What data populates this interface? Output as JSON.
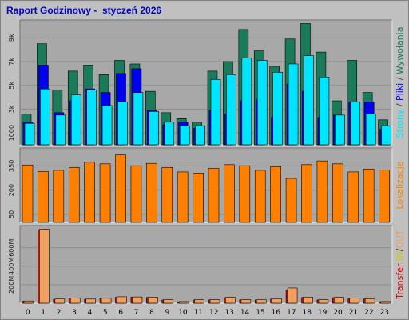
{
  "report": {
    "title": "Raport Godzinowy -  styczeń 2026"
  },
  "colors": {
    "background": "#c0c0c0",
    "plot_bg": "#a8a8a8",
    "grid": "#8c8c8c",
    "hits": "#1a7a5a",
    "files": "#0000ee",
    "pages": "#00e5ff",
    "visits": "#ff8000",
    "transfer_in": "#cc1010",
    "transfer_out": "#f0a060",
    "title": "#0000c0"
  },
  "chart_data": [
    {
      "type": "bar",
      "id": "hits-files-pages",
      "x": [
        "0",
        "1",
        "2",
        "3",
        "4",
        "5",
        "6",
        "7",
        "8",
        "9",
        "10",
        "11",
        "12",
        "13",
        "14",
        "15",
        "16",
        "17",
        "18",
        "19",
        "20",
        "21",
        "22",
        "23"
      ],
      "ylim": [
        0,
        10500
      ],
      "yticks": [
        "1000",
        "3k",
        "5k",
        "7k",
        "9k"
      ],
      "ytick_values": [
        1000,
        3000,
        5000,
        7000,
        9000
      ],
      "grid": true,
      "series": [
        {
          "name": "Strony",
          "values": [
            2600,
            8500,
            4600,
            6200,
            6700,
            5900,
            7100,
            6800,
            4500,
            2700,
            2200,
            1900,
            6200,
            7000,
            9700,
            7900,
            6600,
            8900,
            10200,
            7800,
            3700,
            7100,
            4400,
            2100
          ]
        },
        {
          "name": "Pliki",
          "values": [
            1900,
            6700,
            2700,
            3700,
            4700,
            4400,
            6000,
            6400,
            2900,
            1700,
            1900,
            1400,
            2900,
            2600,
            3700,
            3800,
            2300,
            5100,
            4500,
            2300,
            2500,
            3600,
            3600,
            1300
          ]
        },
        {
          "name": "Wywołania",
          "values": [
            1800,
            4700,
            2500,
            4200,
            4600,
            3300,
            3600,
            4400,
            2800,
            1900,
            1600,
            1600,
            5500,
            5900,
            7300,
            7100,
            6100,
            6800,
            7500,
            5700,
            2500,
            3600,
            2600,
            1600
          ]
        }
      ],
      "legend_text": [
        {
          "text": "Strony",
          "color": "#00e5ff"
        },
        {
          "text": " / ",
          "color": "#404040"
        },
        {
          "text": "Pliki",
          "color": "#0000ee"
        },
        {
          "text": " / ",
          "color": "#404040"
        },
        {
          "text": "Wywołania",
          "color": "#1a7a5a"
        }
      ]
    },
    {
      "type": "bar",
      "id": "visits",
      "x": [
        "0",
        "1",
        "2",
        "3",
        "4",
        "5",
        "6",
        "7",
        "8",
        "9",
        "10",
        "11",
        "12",
        "13",
        "14",
        "15",
        "16",
        "17",
        "18",
        "19",
        "20",
        "21",
        "22",
        "23"
      ],
      "ylim": [
        0,
        460
      ],
      "yticks": [
        "50",
        "200",
        "350"
      ],
      "ytick_values": [
        50,
        200,
        350
      ],
      "grid": true,
      "series": [
        {
          "name": "Lokalizacje",
          "values": [
            355,
            315,
            322,
            340,
            372,
            362,
            417,
            350,
            365,
            340,
            312,
            305,
            335,
            357,
            350,
            322,
            344,
            272,
            357,
            380,
            362,
            312,
            330,
            325
          ]
        }
      ],
      "legend_text": [
        {
          "text": "Lokalizacje",
          "color": "#ff8000"
        }
      ]
    },
    {
      "type": "bar",
      "id": "transfer",
      "x": [
        "0",
        "1",
        "2",
        "3",
        "4",
        "5",
        "6",
        "7",
        "8",
        "9",
        "10",
        "11",
        "12",
        "13",
        "14",
        "15",
        "16",
        "17",
        "18",
        "19",
        "20",
        "21",
        "22",
        "23"
      ],
      "ylim": [
        0,
        840
      ],
      "yticks": [
        "200M",
        "400M",
        "600M"
      ],
      "ytick_values": [
        200,
        400,
        600
      ],
      "grid": true,
      "series": [
        {
          "name": "IN",
          "values": [
            20,
            795,
            42,
            55,
            42,
            50,
            65,
            65,
            62,
            35,
            15,
            35,
            35,
            60,
            35,
            35,
            45,
            140,
            62,
            35,
            60,
            55,
            45,
            15
          ]
        },
        {
          "name": "OUT",
          "values": [
            24,
            800,
            46,
            58,
            45,
            54,
            70,
            68,
            65,
            38,
            18,
            38,
            38,
            64,
            38,
            37,
            48,
            165,
            66,
            38,
            64,
            58,
            48,
            18
          ]
        }
      ],
      "legend_text": [
        {
          "text": "Transfer",
          "color": "#cc1010"
        },
        {
          "text": " IN",
          "color": "#cccc00"
        },
        {
          "text": "/",
          "color": "#404040"
        },
        {
          "text": "OUT",
          "color": "#f0a060"
        }
      ]
    }
  ]
}
